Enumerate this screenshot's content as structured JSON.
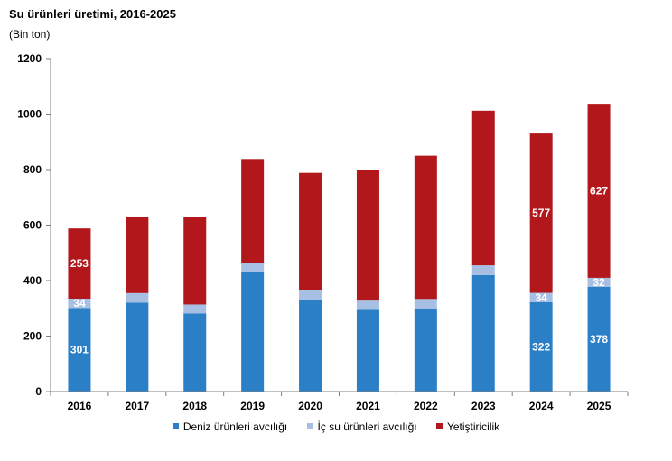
{
  "title": "Su ürünleri üretimi, 2016-2025",
  "subtitle": "(Bin ton)",
  "chart_data": {
    "type": "bar",
    "stacked": true,
    "categories": [
      "2016",
      "2017",
      "2018",
      "2019",
      "2020",
      "2021",
      "2022",
      "2023",
      "2024",
      "2025"
    ],
    "series": [
      {
        "name": "Deniz ürünleri avcılığı",
        "color": "#2a7fc6",
        "values": [
          301,
          321,
          282,
          432,
          332,
          295,
          300,
          420,
          322,
          378
        ]
      },
      {
        "name": "İç su ürünleri avcılığı",
        "color": "#a7bfe3",
        "values": [
          34,
          34,
          32,
          33,
          35,
          33,
          34,
          35,
          34,
          32
        ]
      },
      {
        "name": "Yetiştiricilik",
        "color": "#b2171b",
        "values": [
          253,
          276,
          315,
          373,
          421,
          472,
          516,
          557,
          577,
          627
        ]
      }
    ],
    "data_labels": [
      {
        "category": "2016",
        "series": 0,
        "text": "301"
      },
      {
        "category": "2016",
        "series": 1,
        "text": "34"
      },
      {
        "category": "2016",
        "series": 2,
        "text": "253"
      },
      {
        "category": "2024",
        "series": 0,
        "text": "322"
      },
      {
        "category": "2024",
        "series": 1,
        "text": "34"
      },
      {
        "category": "2024",
        "series": 2,
        "text": "577"
      },
      {
        "category": "2025",
        "series": 0,
        "text": "378"
      },
      {
        "category": "2025",
        "series": 1,
        "text": "32"
      },
      {
        "category": "2025",
        "series": 2,
        "text": "627"
      }
    ],
    "yticks": [
      "0",
      "200",
      "400",
      "600",
      "800",
      "1000",
      "1200"
    ],
    "ylim": [
      0,
      1200
    ],
    "xlabel": "",
    "ylabel": "",
    "grid": false,
    "legend_position": "bottom"
  }
}
